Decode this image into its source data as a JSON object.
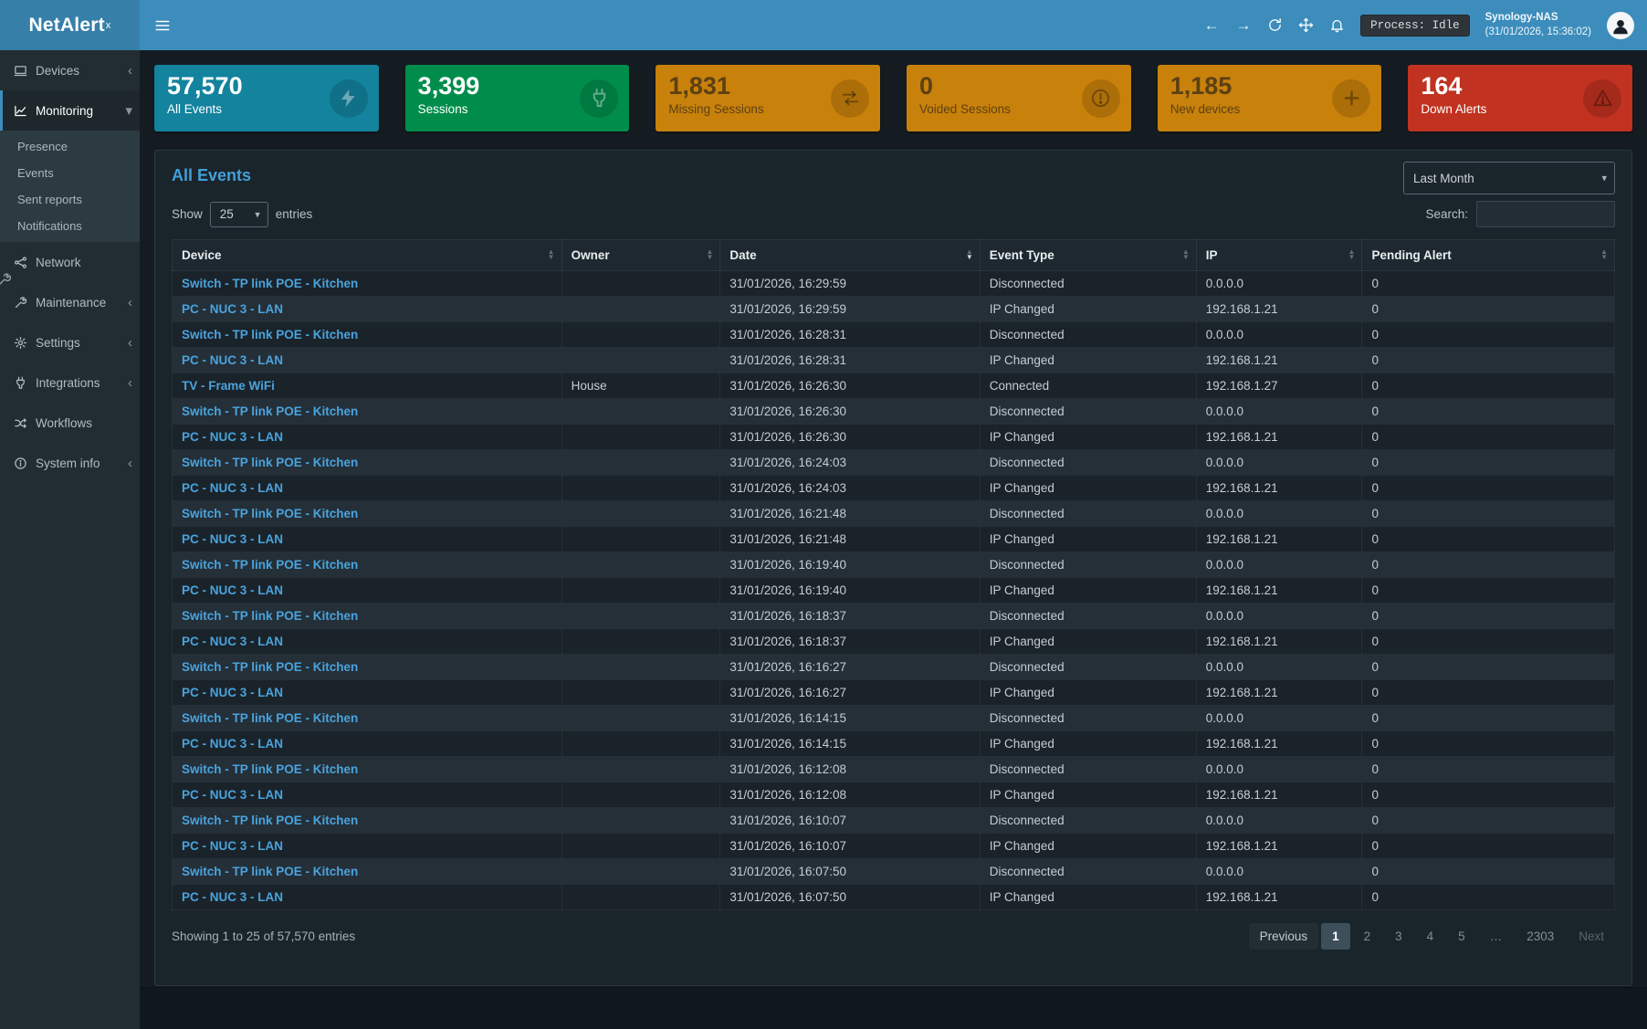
{
  "brand": {
    "name": "NetAlert",
    "sup": "x"
  },
  "header": {
    "process_label": "Process: Idle",
    "host": "Synology-NAS",
    "host_time": "(31/01/2026, 15:36:02)"
  },
  "glyphs": {
    "chevron_left": "‹",
    "chevron_down": "▾",
    "select_caret": "▾",
    "sort_asc": "▲",
    "sort_desc": "▼",
    "back_arrow": "←",
    "forward_arrow": "→"
  },
  "sidebar": {
    "items": [
      {
        "label": "Devices"
      },
      {
        "label": "Monitoring"
      },
      {
        "label": "Network"
      },
      {
        "label": "Maintenance"
      },
      {
        "label": "Settings"
      },
      {
        "label": "Integrations"
      },
      {
        "label": "Workflows"
      },
      {
        "label": "System info"
      }
    ],
    "monitoring_children": [
      "Presence",
      "Events",
      "Sent reports",
      "Notifications"
    ]
  },
  "cards": [
    {
      "value": "57,570",
      "label": "All Events",
      "color": "#13839e",
      "icon": "bolt-icon",
      "text": "light"
    },
    {
      "value": "3,399",
      "label": "Sessions",
      "color": "#008d4c",
      "icon": "plug-icon",
      "text": "light"
    },
    {
      "value": "1,831",
      "label": "Missing Sessions",
      "color": "#c8810b",
      "icon": "exchange-icon",
      "text": "dark"
    },
    {
      "value": "0",
      "label": "Voided Sessions",
      "color": "#c8810b",
      "icon": "alert-circle-icon",
      "text": "dark"
    },
    {
      "value": "1,185",
      "label": "New devices",
      "color": "#c8810b",
      "icon": "plus-icon",
      "text": "dark"
    },
    {
      "value": "164",
      "label": "Down Alerts",
      "color": "#c13220",
      "icon": "warning-icon",
      "text": "light"
    }
  ],
  "panel": {
    "title": "All Events",
    "period": "Last Month",
    "show_label": "Show",
    "page_size": "25",
    "entries_label": "entries",
    "search_label": "Search:",
    "table": {
      "columns": [
        "Device",
        "Owner",
        "Date",
        "Event Type",
        "IP",
        "Pending Alert"
      ],
      "sorted_column": "Date",
      "rows": [
        [
          "Switch - TP link POE - Kitchen",
          "",
          "31/01/2026, 16:29:59",
          "Disconnected",
          "0.0.0.0",
          "0"
        ],
        [
          "PC - NUC 3 - LAN",
          "",
          "31/01/2026, 16:29:59",
          "IP Changed",
          "192.168.1.21",
          "0"
        ],
        [
          "Switch - TP link POE - Kitchen",
          "",
          "31/01/2026, 16:28:31",
          "Disconnected",
          "0.0.0.0",
          "0"
        ],
        [
          "PC - NUC 3 - LAN",
          "",
          "31/01/2026, 16:28:31",
          "IP Changed",
          "192.168.1.21",
          "0"
        ],
        [
          "TV - Frame WiFi",
          "House",
          "31/01/2026, 16:26:30",
          "Connected",
          "192.168.1.27",
          "0"
        ],
        [
          "Switch - TP link POE - Kitchen",
          "",
          "31/01/2026, 16:26:30",
          "Disconnected",
          "0.0.0.0",
          "0"
        ],
        [
          "PC - NUC 3 - LAN",
          "",
          "31/01/2026, 16:26:30",
          "IP Changed",
          "192.168.1.21",
          "0"
        ],
        [
          "Switch - TP link POE - Kitchen",
          "",
          "31/01/2026, 16:24:03",
          "Disconnected",
          "0.0.0.0",
          "0"
        ],
        [
          "PC - NUC 3 - LAN",
          "",
          "31/01/2026, 16:24:03",
          "IP Changed",
          "192.168.1.21",
          "0"
        ],
        [
          "Switch - TP link POE - Kitchen",
          "",
          "31/01/2026, 16:21:48",
          "Disconnected",
          "0.0.0.0",
          "0"
        ],
        [
          "PC - NUC 3 - LAN",
          "",
          "31/01/2026, 16:21:48",
          "IP Changed",
          "192.168.1.21",
          "0"
        ],
        [
          "Switch - TP link POE - Kitchen",
          "",
          "31/01/2026, 16:19:40",
          "Disconnected",
          "0.0.0.0",
          "0"
        ],
        [
          "PC - NUC 3 - LAN",
          "",
          "31/01/2026, 16:19:40",
          "IP Changed",
          "192.168.1.21",
          "0"
        ],
        [
          "Switch - TP link POE - Kitchen",
          "",
          "31/01/2026, 16:18:37",
          "Disconnected",
          "0.0.0.0",
          "0"
        ],
        [
          "PC - NUC 3 - LAN",
          "",
          "31/01/2026, 16:18:37",
          "IP Changed",
          "192.168.1.21",
          "0"
        ],
        [
          "Switch - TP link POE - Kitchen",
          "",
          "31/01/2026, 16:16:27",
          "Disconnected",
          "0.0.0.0",
          "0"
        ],
        [
          "PC - NUC 3 - LAN",
          "",
          "31/01/2026, 16:16:27",
          "IP Changed",
          "192.168.1.21",
          "0"
        ],
        [
          "Switch - TP link POE - Kitchen",
          "",
          "31/01/2026, 16:14:15",
          "Disconnected",
          "0.0.0.0",
          "0"
        ],
        [
          "PC - NUC 3 - LAN",
          "",
          "31/01/2026, 16:14:15",
          "IP Changed",
          "192.168.1.21",
          "0"
        ],
        [
          "Switch - TP link POE - Kitchen",
          "",
          "31/01/2026, 16:12:08",
          "Disconnected",
          "0.0.0.0",
          "0"
        ],
        [
          "PC - NUC 3 - LAN",
          "",
          "31/01/2026, 16:12:08",
          "IP Changed",
          "192.168.1.21",
          "0"
        ],
        [
          "Switch - TP link POE - Kitchen",
          "",
          "31/01/2026, 16:10:07",
          "Disconnected",
          "0.0.0.0",
          "0"
        ],
        [
          "PC - NUC 3 - LAN",
          "",
          "31/01/2026, 16:10:07",
          "IP Changed",
          "192.168.1.21",
          "0"
        ],
        [
          "Switch - TP link POE - Kitchen",
          "",
          "31/01/2026, 16:07:50",
          "Disconnected",
          "0.0.0.0",
          "0"
        ],
        [
          "PC - NUC 3 - LAN",
          "",
          "31/01/2026, 16:07:50",
          "IP Changed",
          "192.168.1.21",
          "0"
        ]
      ]
    },
    "summary": "Showing 1 to 25 of 57,570 entries",
    "pagination": [
      {
        "label": "Previous",
        "state": "button"
      },
      {
        "label": "1",
        "state": "active"
      },
      {
        "label": "2",
        "state": "link"
      },
      {
        "label": "3",
        "state": "link"
      },
      {
        "label": "4",
        "state": "link"
      },
      {
        "label": "5",
        "state": "link"
      },
      {
        "label": "…",
        "state": "ellipsis"
      },
      {
        "label": "2303",
        "state": "link"
      },
      {
        "label": "Next",
        "state": "disabled"
      }
    ]
  },
  "colors": {
    "accent": "#3c8dbc",
    "card_teal": "#13839e",
    "card_green": "#008d4c",
    "card_orange": "#c8810b",
    "card_red": "#c13220",
    "link": "#4aa3dc",
    "sidebar_bg": "#222d32",
    "panel_bg": "#1a242b"
  }
}
